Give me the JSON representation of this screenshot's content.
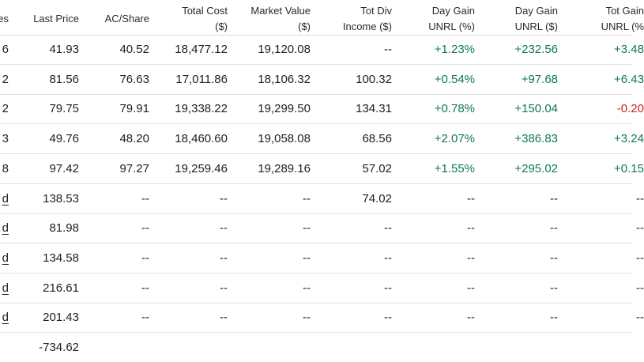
{
  "columns": [
    {
      "line1": "es",
      "line2": ""
    },
    {
      "line1": "Last Price",
      "line2": ""
    },
    {
      "line1": "AC/Share",
      "line2": ""
    },
    {
      "line1": "Total Cost",
      "line2": "($)"
    },
    {
      "line1": "Market Value",
      "line2": "($)"
    },
    {
      "line1": "Tot Div",
      "line2": "Income ($)"
    },
    {
      "line1": "Day Gain",
      "line2": "UNRL (%)"
    },
    {
      "line1": "Day Gain",
      "line2": "UNRL ($)"
    },
    {
      "line1": "Tot Gain",
      "line2": "UNRL (%"
    }
  ],
  "rows": [
    {
      "shares": "6",
      "last_price": "41.93",
      "ac_share": "40.52",
      "total_cost": "18,477.12",
      "market_value": "19,120.08",
      "tot_div": "--",
      "day_gain_pct": "+1.23%",
      "day_gain_usd": "+232.56",
      "tot_gain_pct": "+3.48"
    },
    {
      "shares": "2",
      "last_price": "81.56",
      "ac_share": "76.63",
      "total_cost": "17,011.86",
      "market_value": "18,106.32",
      "tot_div": "100.32",
      "day_gain_pct": "+0.54%",
      "day_gain_usd": "+97.68",
      "tot_gain_pct": "+6.43"
    },
    {
      "shares": "2",
      "last_price": "79.75",
      "ac_share": "79.91",
      "total_cost": "19,338.22",
      "market_value": "19,299.50",
      "tot_div": "134.31",
      "day_gain_pct": "+0.78%",
      "day_gain_usd": "+150.04",
      "tot_gain_pct": "-0.20"
    },
    {
      "shares": "3",
      "last_price": "49.76",
      "ac_share": "48.20",
      "total_cost": "18,460.60",
      "market_value": "19,058.08",
      "tot_div": "68.56",
      "day_gain_pct": "+2.07%",
      "day_gain_usd": "+386.83",
      "tot_gain_pct": "+3.24"
    },
    {
      "shares": "8",
      "last_price": "97.42",
      "ac_share": "97.27",
      "total_cost": "19,259.46",
      "market_value": "19,289.16",
      "tot_div": "57.02",
      "day_gain_pct": "+1.55%",
      "day_gain_usd": "+295.02",
      "tot_gain_pct": "+0.15"
    },
    {
      "shares": "d",
      "last_price": "138.53",
      "ac_share": "--",
      "total_cost": "--",
      "market_value": "--",
      "tot_div": "74.02",
      "day_gain_pct": "--",
      "day_gain_usd": "--",
      "tot_gain_pct": "--"
    },
    {
      "shares": "d",
      "last_price": "81.98",
      "ac_share": "--",
      "total_cost": "--",
      "market_value": "--",
      "tot_div": "--",
      "day_gain_pct": "--",
      "day_gain_usd": "--",
      "tot_gain_pct": "--"
    },
    {
      "shares": "d",
      "last_price": "134.58",
      "ac_share": "--",
      "total_cost": "--",
      "market_value": "--",
      "tot_div": "--",
      "day_gain_pct": "--",
      "day_gain_usd": "--",
      "tot_gain_pct": "--"
    },
    {
      "shares": "d",
      "last_price": "216.61",
      "ac_share": "--",
      "total_cost": "--",
      "market_value": "--",
      "tot_div": "--",
      "day_gain_pct": "--",
      "day_gain_usd": "--",
      "tot_gain_pct": "--"
    },
    {
      "shares": "d",
      "last_price": "201.43",
      "ac_share": "--",
      "total_cost": "--",
      "market_value": "--",
      "tot_div": "--",
      "day_gain_pct": "--",
      "day_gain_usd": "--",
      "tot_gain_pct": "--"
    },
    {
      "shares": "",
      "last_price": "-734.62",
      "ac_share": "",
      "total_cost": "",
      "market_value": "",
      "tot_div": "",
      "day_gain_pct": "",
      "day_gain_usd": "",
      "tot_gain_pct": ""
    }
  ],
  "colors": {
    "positive": "#0f7a4e",
    "negative": "#d21f1f"
  }
}
